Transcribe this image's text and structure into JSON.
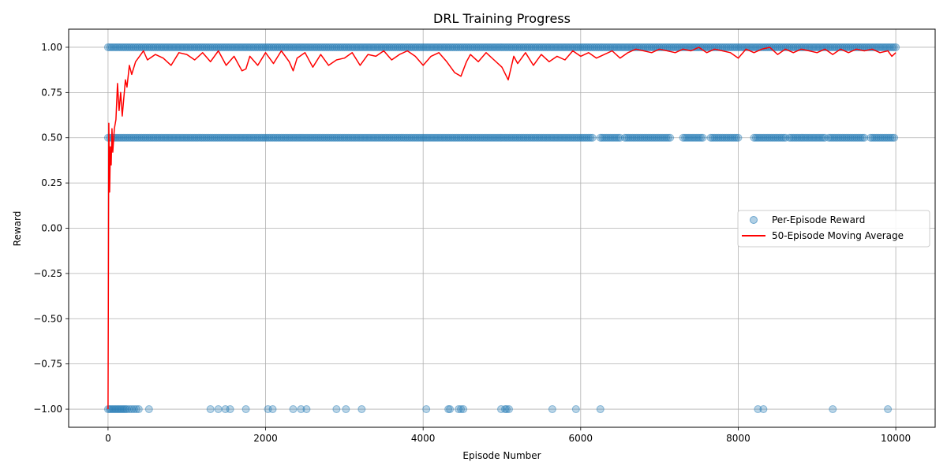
{
  "chart_data": {
    "type": "scatter",
    "title": "DRL Training Progress",
    "xlabel": "Episode Number",
    "ylabel": "Reward",
    "xlim": [
      -500,
      10500
    ],
    "ylim": [
      -1.1,
      1.1
    ],
    "xticks": [
      0,
      2000,
      4000,
      6000,
      8000,
      10000
    ],
    "xtick_labels": [
      "0",
      "2000",
      "4000",
      "6000",
      "8000",
      "10000"
    ],
    "yticks": [
      1.0,
      0.75,
      0.5,
      0.25,
      0.0,
      -0.25,
      -0.5,
      -0.75,
      -1.0
    ],
    "ytick_labels": [
      "1.00",
      "0.75",
      "0.50",
      "0.25",
      "0.00",
      "−0.25",
      "−0.50",
      "−0.75",
      "−1.00"
    ],
    "grid": true,
    "legend_position": "center-right",
    "colors": {
      "scatter": "#1f77b4",
      "moving_average": "#ff0000"
    },
    "series": [
      {
        "name": "Per-Episode Reward",
        "kind": "scatter",
        "points": {
          "1.0": [
            [
              0,
              10000
            ]
          ],
          "0.5": [
            [
              0,
              6150
            ],
            [
              6250,
              6500
            ],
            [
              6560,
              7150
            ],
            [
              7300,
              7550
            ],
            [
              7650,
              8020
            ],
            [
              8200,
              8600
            ],
            [
              8650,
              9100
            ],
            [
              9150,
              9600
            ],
            [
              9680,
              10000
            ]
          ],
          "-1.0": [
            0,
            20,
            40,
            60,
            80,
            100,
            120,
            140,
            160,
            180,
            200,
            220,
            240,
            270,
            300,
            330,
            360,
            390,
            520,
            1300,
            1400,
            1490,
            1550,
            1750,
            2030,
            2090,
            2350,
            2450,
            2520,
            2900,
            3020,
            3220,
            4040,
            4320,
            4340,
            4450,
            4480,
            4510,
            4990,
            5040,
            5060,
            5090,
            5640,
            5940,
            6250,
            8250,
            8320,
            9200,
            9900
          ]
        }
      },
      {
        "name": "50-Episode Moving Average",
        "kind": "line",
        "x": [
          0,
          10,
          20,
          30,
          40,
          50,
          60,
          80,
          100,
          120,
          140,
          160,
          180,
          200,
          220,
          240,
          270,
          300,
          350,
          400,
          450,
          500,
          600,
          700,
          800,
          900,
          1000,
          1100,
          1200,
          1300,
          1400,
          1500,
          1600,
          1700,
          1750,
          1800,
          1900,
          2000,
          2100,
          2200,
          2300,
          2350,
          2400,
          2500,
          2600,
          2700,
          2800,
          2900,
          3000,
          3100,
          3200,
          3300,
          3400,
          3500,
          3600,
          3700,
          3800,
          3900,
          4000,
          4100,
          4200,
          4300,
          4400,
          4480,
          4550,
          4600,
          4700,
          4800,
          4900,
          5000,
          5080,
          5150,
          5200,
          5300,
          5400,
          5500,
          5600,
          5700,
          5800,
          5900,
          6000,
          6100,
          6200,
          6300,
          6400,
          6500,
          6600,
          6700,
          6800,
          6900,
          7000,
          7100,
          7200,
          7300,
          7400,
          7500,
          7600,
          7700,
          7800,
          7900,
          8000,
          8100,
          8200,
          8300,
          8400,
          8500,
          8600,
          8700,
          8800,
          8900,
          9000,
          9100,
          9200,
          9300,
          9400,
          9500,
          9600,
          9700,
          9800,
          9900,
          9950,
          10000
        ],
        "y": [
          -1.0,
          0.58,
          0.2,
          0.45,
          0.35,
          0.55,
          0.42,
          0.55,
          0.6,
          0.8,
          0.65,
          0.75,
          0.62,
          0.72,
          0.82,
          0.78,
          0.9,
          0.85,
          0.92,
          0.95,
          0.98,
          0.93,
          0.96,
          0.94,
          0.9,
          0.97,
          0.96,
          0.93,
          0.97,
          0.92,
          0.98,
          0.9,
          0.95,
          0.87,
          0.88,
          0.95,
          0.9,
          0.97,
          0.91,
          0.98,
          0.92,
          0.87,
          0.94,
          0.97,
          0.89,
          0.96,
          0.9,
          0.93,
          0.94,
          0.97,
          0.9,
          0.96,
          0.95,
          0.98,
          0.93,
          0.96,
          0.98,
          0.95,
          0.9,
          0.95,
          0.97,
          0.92,
          0.86,
          0.84,
          0.92,
          0.96,
          0.92,
          0.97,
          0.93,
          0.89,
          0.82,
          0.95,
          0.91,
          0.97,
          0.9,
          0.96,
          0.92,
          0.95,
          0.93,
          0.98,
          0.95,
          0.97,
          0.94,
          0.96,
          0.98,
          0.94,
          0.97,
          0.99,
          0.98,
          0.97,
          0.99,
          0.98,
          0.97,
          0.99,
          0.98,
          1.0,
          0.97,
          0.99,
          0.98,
          0.97,
          0.94,
          0.99,
          0.97,
          0.99,
          1.0,
          0.96,
          0.99,
          0.97,
          0.99,
          0.98,
          0.97,
          0.99,
          0.96,
          0.99,
          0.97,
          0.99,
          0.98,
          0.99,
          0.97,
          0.98,
          0.95,
          0.97
        ]
      }
    ]
  }
}
